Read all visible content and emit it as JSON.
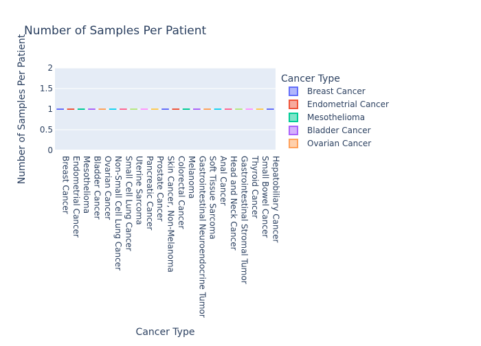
{
  "chart_data": {
    "type": "box",
    "title": "Number of Samples Per Patient",
    "xlabel": "Cancer Type",
    "ylabel": "Number of Samples Per Patient",
    "ylim": [
      0,
      2
    ],
    "yticks": [
      "0",
      "0.5",
      "1",
      "1.5",
      "2"
    ],
    "ytick_values": [
      0,
      0.5,
      1,
      1.5,
      2
    ],
    "grid": true,
    "plot_background": "#e5ecf6",
    "legend": {
      "title": "Cancer Type",
      "placement": "right",
      "entries": [
        {
          "name": "Breast Cancer",
          "color": "#636efa"
        },
        {
          "name": "Endometrial Cancer",
          "color": "#ef553b"
        },
        {
          "name": "Mesothelioma",
          "color": "#00cc96"
        },
        {
          "name": "Bladder Cancer",
          "color": "#ab63fa"
        },
        {
          "name": "Ovarian Cancer",
          "color": "#ffa15a"
        }
      ]
    },
    "categories": [
      "Breast Cancer",
      "Endometrial Cancer",
      "Mesothelioma",
      "Bladder Cancer",
      "Ovarian Cancer",
      "Non-Small Cell Lung Cancer",
      "Small Cell Lung Cancer",
      "Uterine Sarcoma",
      "Pancreatic Cancer",
      "Prostate Cancer",
      "Skin Cancer, Non-Melanoma",
      "Colorectal Cancer",
      "Melanoma",
      "Gastrointestinal Neuroendocrine Tumor",
      "Soft Tissue Sarcoma",
      "Anal Cancer",
      "Head and Neck Cancer",
      "Gastrointestinal Stromal Tumor",
      "Thyroid Cancer",
      "Small Bowel Cancer",
      "Hepatobiliary Cancer"
    ],
    "values": [
      1,
      1,
      1,
      1,
      1,
      1,
      1,
      1,
      1,
      1,
      1,
      1,
      1,
      1,
      1,
      1,
      1,
      1,
      1,
      1,
      1
    ],
    "colors": [
      "#636efa",
      "#ef553b",
      "#00cc96",
      "#ab63fa",
      "#ffa15a",
      "#19d3f3",
      "#ff6692",
      "#b6e880",
      "#ff97ff",
      "#fecb52",
      "#636efa",
      "#ef553b",
      "#00cc96",
      "#ab63fa",
      "#ffa15a",
      "#19d3f3",
      "#ff6692",
      "#b6e880",
      "#ff97ff",
      "#fecb52",
      "#636efa"
    ]
  }
}
